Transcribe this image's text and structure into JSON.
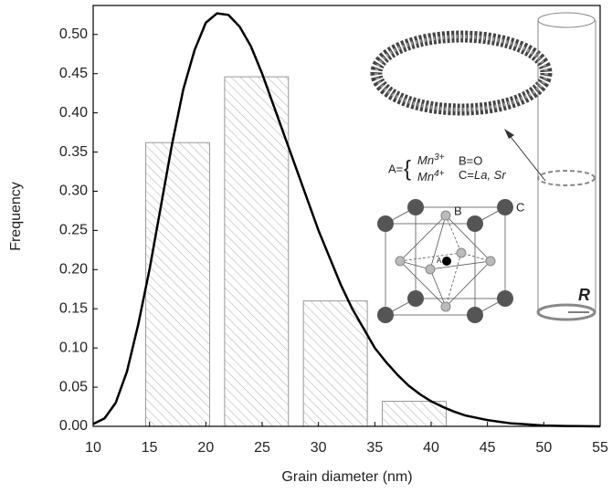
{
  "chart_data": {
    "type": "bar",
    "x_label": "Grain diameter (nm)",
    "y_label": "Frequency",
    "x": [
      17.5,
      24.5,
      31.5,
      38.5
    ],
    "values": [
      0.362,
      0.446,
      0.16,
      0.032
    ],
    "color": "#999999",
    "xlim": [
      10,
      55
    ],
    "ylim": [
      0,
      0.537
    ],
    "xticks": [
      10,
      15,
      20,
      25,
      30,
      35,
      40,
      45,
      50,
      55
    ],
    "yticks": [
      {
        "value": 0,
        "label": "0.00"
      },
      {
        "value": 0.05,
        "label": "0.05"
      },
      {
        "value": 0.1,
        "label": "0.10"
      },
      {
        "value": 0.15,
        "label": "0.15"
      },
      {
        "value": 0.2,
        "label": "0.20"
      },
      {
        "value": 0.25,
        "label": "0.25"
      },
      {
        "value": 0.3,
        "label": "0.30"
      },
      {
        "value": 0.35,
        "label": "0.35"
      },
      {
        "value": 0.4,
        "label": "0.40"
      },
      {
        "value": 0.45,
        "label": "0.45"
      },
      {
        "value": 0.5,
        "label": "0.50"
      }
    ],
    "overlays": [
      {
        "type": "line",
        "color": "#000000",
        "x": [
          10,
          11,
          12,
          13,
          14,
          15,
          16,
          17,
          18,
          19,
          20,
          21,
          22,
          23,
          24,
          25,
          26,
          27,
          28,
          29,
          30,
          31,
          32,
          33,
          34,
          35,
          36,
          37,
          38,
          39,
          40,
          41,
          42,
          43,
          44,
          45,
          46,
          47,
          48,
          50,
          52,
          55
        ],
        "values": [
          0.003,
          0.01,
          0.03,
          0.07,
          0.13,
          0.2,
          0.28,
          0.36,
          0.43,
          0.48,
          0.515,
          0.527,
          0.525,
          0.51,
          0.485,
          0.45,
          0.41,
          0.37,
          0.33,
          0.29,
          0.25,
          0.215,
          0.18,
          0.15,
          0.125,
          0.1,
          0.082,
          0.066,
          0.052,
          0.041,
          0.032,
          0.025,
          0.019,
          0.014,
          0.011,
          0.008,
          0.006,
          0.004,
          0.003,
          0.001,
          0.0005,
          0
        ]
      }
    ],
    "inset": {
      "a_eq": "A=",
      "brace": "{",
      "mn1": "Mn",
      "mn1_sup": "3+",
      "mn2": "Mn",
      "mn2_sup": "4+",
      "b_eq": "B=O",
      "c_eq": "C=",
      "c_val": "La, Sr",
      "label_b": "B",
      "label_c": "C",
      "label_a": "A",
      "label_r": "R"
    }
  }
}
